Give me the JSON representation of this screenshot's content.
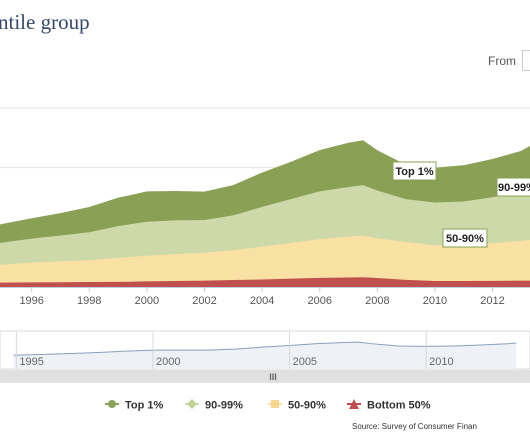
{
  "title": "ntile group",
  "from_label": "From",
  "chart_data": {
    "type": "area",
    "stacked": true,
    "x": [
      1994.9,
      1996,
      1997,
      1998,
      1999,
      2000,
      2001,
      2002,
      2003,
      2004,
      2005,
      2006,
      2007,
      2007.5,
      2008,
      2009,
      2010,
      2011,
      2012,
      2013,
      2013.3
    ],
    "series": [
      {
        "name": "Bottom 50%",
        "color": "#c0504d",
        "values": [
          2.2,
          2.3,
          2.4,
          2.5,
          2.6,
          2.8,
          3,
          3.2,
          3.5,
          3.8,
          4.2,
          4.6,
          4.8,
          4.9,
          4.5,
          3.6,
          3.0,
          3.0,
          3.1,
          3.2,
          3.2
        ]
      },
      {
        "name": "50-90%",
        "color": "#f9e0a3",
        "values": [
          9,
          10,
          10.5,
          11,
          12,
          13,
          13.5,
          14,
          15,
          16.5,
          18,
          19.5,
          20.5,
          21,
          20,
          19,
          18,
          18,
          19,
          20,
          20.5
        ]
      },
      {
        "name": "90-99%",
        "color": "#ced9aa",
        "values": [
          11,
          12,
          13,
          14,
          16,
          17,
          17,
          16.5,
          17.5,
          20,
          22,
          24,
          25,
          25.3,
          24,
          21.5,
          21.5,
          22,
          23,
          25,
          26
        ]
      },
      {
        "name": "Top 1%",
        "color": "#8aa155",
        "values": [
          9,
          10,
          11,
          12.5,
          14,
          15,
          14.5,
          14,
          15,
          17,
          18.5,
          20.5,
          22,
          22.3,
          20,
          17,
          17.2,
          18,
          19,
          20,
          21
        ]
      }
    ],
    "xlim": [
      1994.9,
      2013.3
    ],
    "ylim": [
      0,
      90
    ],
    "x_ticks": [
      "1996",
      "1998",
      "2000",
      "2002",
      "2004",
      "2006",
      "2008",
      "2010",
      "2012"
    ],
    "annotations": [
      "Top 1%",
      "90-99%",
      "50-90%"
    ],
    "navigator": {
      "ticks": [
        "1995",
        "2000",
        "2005",
        "2010"
      ],
      "handle": "III"
    },
    "legend": {
      "position": "bottom",
      "items": [
        "Top 1%",
        "90-99%",
        "50-90%",
        "Bottom 50%"
      ]
    },
    "grid": true
  },
  "source": "Source: Survey of Consumer Finan"
}
